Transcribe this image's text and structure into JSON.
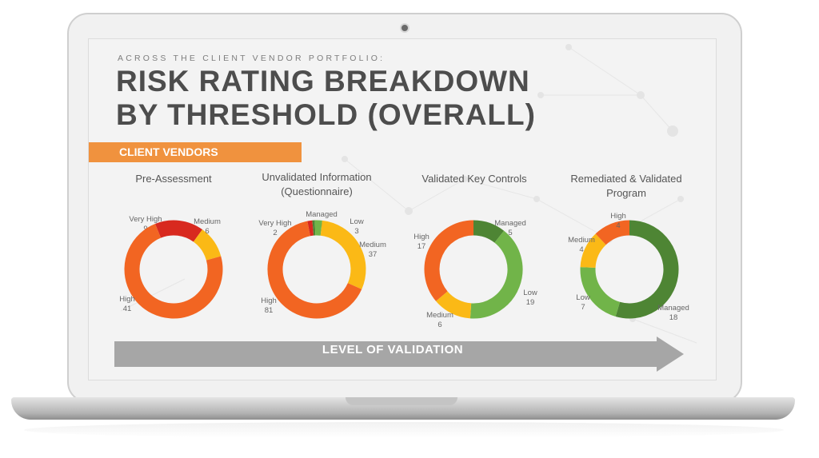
{
  "eyebrow": "ACROSS THE CLIENT VENDOR PORTFOLIO:",
  "title_line1": "RISK RATING BREAKDOWN",
  "title_line2": "BY THRESHOLD (OVERALL)",
  "banner": "CLIENT VENDORS",
  "arrow_label": "LEVEL OF  VALIDATION",
  "colors": {
    "Very High": "#d8291f",
    "High": "#f26522",
    "Medium": "#fbb916",
    "Low": "#71b449",
    "Managed": "#4e8534"
  },
  "chart_data": [
    {
      "type": "pie",
      "title": "Pre-Assessment",
      "slices": [
        {
          "label": "Very High",
          "value": 9
        },
        {
          "label": "Medium",
          "value": 6
        },
        {
          "label": "High",
          "value": 41
        }
      ]
    },
    {
      "type": "pie",
      "title": "Unvalidated Information (Questionnaire)",
      "slices": [
        {
          "label": "Very High",
          "value": 2
        },
        {
          "label": "Managed",
          "value": 1
        },
        {
          "label": "Low",
          "value": 3
        },
        {
          "label": "Medium",
          "value": 37
        },
        {
          "label": "High",
          "value": 81
        }
      ]
    },
    {
      "type": "pie",
      "title": "Validated Key Controls",
      "slices": [
        {
          "label": "Managed",
          "value": 5
        },
        {
          "label": "Low",
          "value": 19
        },
        {
          "label": "Medium",
          "value": 6
        },
        {
          "label": "High",
          "value": 17
        }
      ]
    },
    {
      "type": "pie",
      "title": "Remediated & Validated Program",
      "slices": [
        {
          "label": "Managed",
          "value": 18
        },
        {
          "label": "Low",
          "value": 7
        },
        {
          "label": "Medium",
          "value": 4
        },
        {
          "label": "High",
          "value": 4
        }
      ]
    }
  ]
}
